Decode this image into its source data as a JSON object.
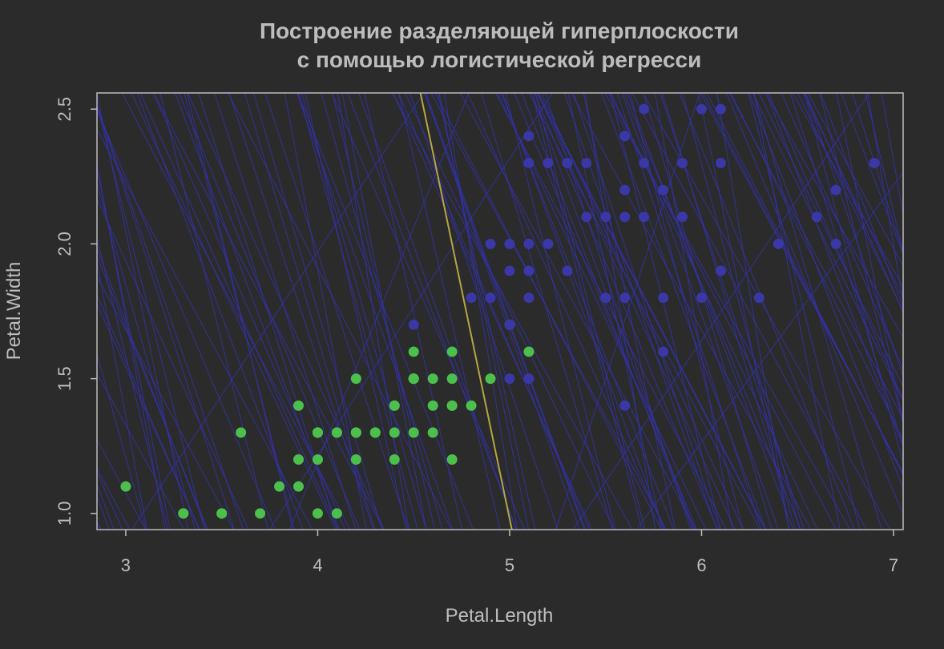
{
  "chart_data": {
    "type": "scatter",
    "title": "Построение разделяющей гиперплоскости",
    "subtitle": "с помощью логистической регресси",
    "xlabel": "Petal.Length",
    "ylabel": "Petal.Width",
    "xlim": [
      2.85,
      7.05
    ],
    "ylim": [
      0.94,
      2.56
    ],
    "x_ticks": [
      "3",
      "4",
      "5",
      "6",
      "7"
    ],
    "y_ticks": [
      "1.0",
      "1.5",
      "2.0",
      "2.5"
    ],
    "grid": false,
    "colors": {
      "background": "#2b2b2b",
      "frame": "#bdbdbd",
      "text": "#bdbdbd",
      "class_versicolor": "#4cbf4c",
      "class_virginica": "#3a37a6",
      "iteration_lines": "#3333aa",
      "final_boundary": "#b5a642"
    },
    "final_boundary": {
      "slope": -3.4,
      "intercept": 17.98
    },
    "series": [
      {
        "points": [
          [
            4.7,
            1.4
          ],
          [
            4.5,
            1.5
          ],
          [
            4.9,
            1.5
          ],
          [
            4.0,
            1.3
          ],
          [
            4.6,
            1.5
          ],
          [
            4.5,
            1.3
          ],
          [
            4.7,
            1.6
          ],
          [
            3.3,
            1.0
          ],
          [
            4.6,
            1.3
          ],
          [
            3.9,
            1.4
          ],
          [
            3.5,
            1.0
          ],
          [
            4.2,
            1.5
          ],
          [
            4.0,
            1.0
          ],
          [
            4.7,
            1.4
          ],
          [
            3.6,
            1.3
          ],
          [
            4.4,
            1.4
          ],
          [
            4.5,
            1.5
          ],
          [
            4.1,
            1.0
          ],
          [
            4.5,
            1.5
          ],
          [
            3.9,
            1.1
          ],
          [
            4.0,
            1.3
          ],
          [
            4.7,
            1.2
          ],
          [
            4.3,
            1.3
          ],
          [
            4.4,
            1.4
          ],
          [
            4.8,
            1.4
          ],
          [
            5.0,
            1.7
          ],
          [
            4.5,
            1.5
          ],
          [
            3.5,
            1.0
          ],
          [
            3.8,
            1.1
          ],
          [
            3.7,
            1.0
          ],
          [
            3.9,
            1.2
          ],
          [
            5.1,
            1.6
          ],
          [
            4.5,
            1.5
          ],
          [
            4.5,
            1.6
          ],
          [
            4.7,
            1.5
          ],
          [
            4.4,
            1.3
          ],
          [
            4.1,
            1.3
          ],
          [
            4.0,
            1.3
          ],
          [
            4.4,
            1.2
          ],
          [
            4.6,
            1.4
          ],
          [
            4.0,
            1.2
          ],
          [
            3.3,
            1.0
          ],
          [
            4.2,
            1.3
          ],
          [
            4.2,
            1.2
          ],
          [
            4.2,
            1.3
          ],
          [
            4.3,
            1.3
          ],
          [
            3.0,
            1.1
          ],
          [
            4.1,
            1.3
          ]
        ]
      },
      {
        "points": [
          [
            6.0,
            2.5
          ],
          [
            5.1,
            1.9
          ],
          [
            5.9,
            2.1
          ],
          [
            5.6,
            1.8
          ],
          [
            5.8,
            2.2
          ],
          [
            6.6,
            2.1
          ],
          [
            4.5,
            1.7
          ],
          [
            6.3,
            1.8
          ],
          [
            5.8,
            1.8
          ],
          [
            6.1,
            2.5
          ],
          [
            5.1,
            2.0
          ],
          [
            5.3,
            1.9
          ],
          [
            5.5,
            2.1
          ],
          [
            5.0,
            2.0
          ],
          [
            5.1,
            2.4
          ],
          [
            5.3,
            2.3
          ],
          [
            5.5,
            1.8
          ],
          [
            6.7,
            2.2
          ],
          [
            6.9,
            2.3
          ],
          [
            5.0,
            1.5
          ],
          [
            5.7,
            2.3
          ],
          [
            4.9,
            2.0
          ],
          [
            6.7,
            2.0
          ],
          [
            4.9,
            1.8
          ],
          [
            5.7,
            2.1
          ],
          [
            6.0,
            1.8
          ],
          [
            4.8,
            1.8
          ],
          [
            4.9,
            1.8
          ],
          [
            5.6,
            2.1
          ],
          [
            5.8,
            1.6
          ],
          [
            6.1,
            1.9
          ],
          [
            6.4,
            2.0
          ],
          [
            5.6,
            2.2
          ],
          [
            5.1,
            1.5
          ],
          [
            5.6,
            1.4
          ],
          [
            6.1,
            2.3
          ],
          [
            5.6,
            2.4
          ],
          [
            5.5,
            1.8
          ],
          [
            4.8,
            1.8
          ],
          [
            5.4,
            2.1
          ],
          [
            5.6,
            2.4
          ],
          [
            5.1,
            2.3
          ],
          [
            5.9,
            2.3
          ],
          [
            5.7,
            2.5
          ],
          [
            5.2,
            2.3
          ],
          [
            5.0,
            1.9
          ],
          [
            5.2,
            2.0
          ],
          [
            5.4,
            2.3
          ],
          [
            5.1,
            1.8
          ],
          [
            5.0,
            1.7
          ]
        ]
      }
    ]
  }
}
